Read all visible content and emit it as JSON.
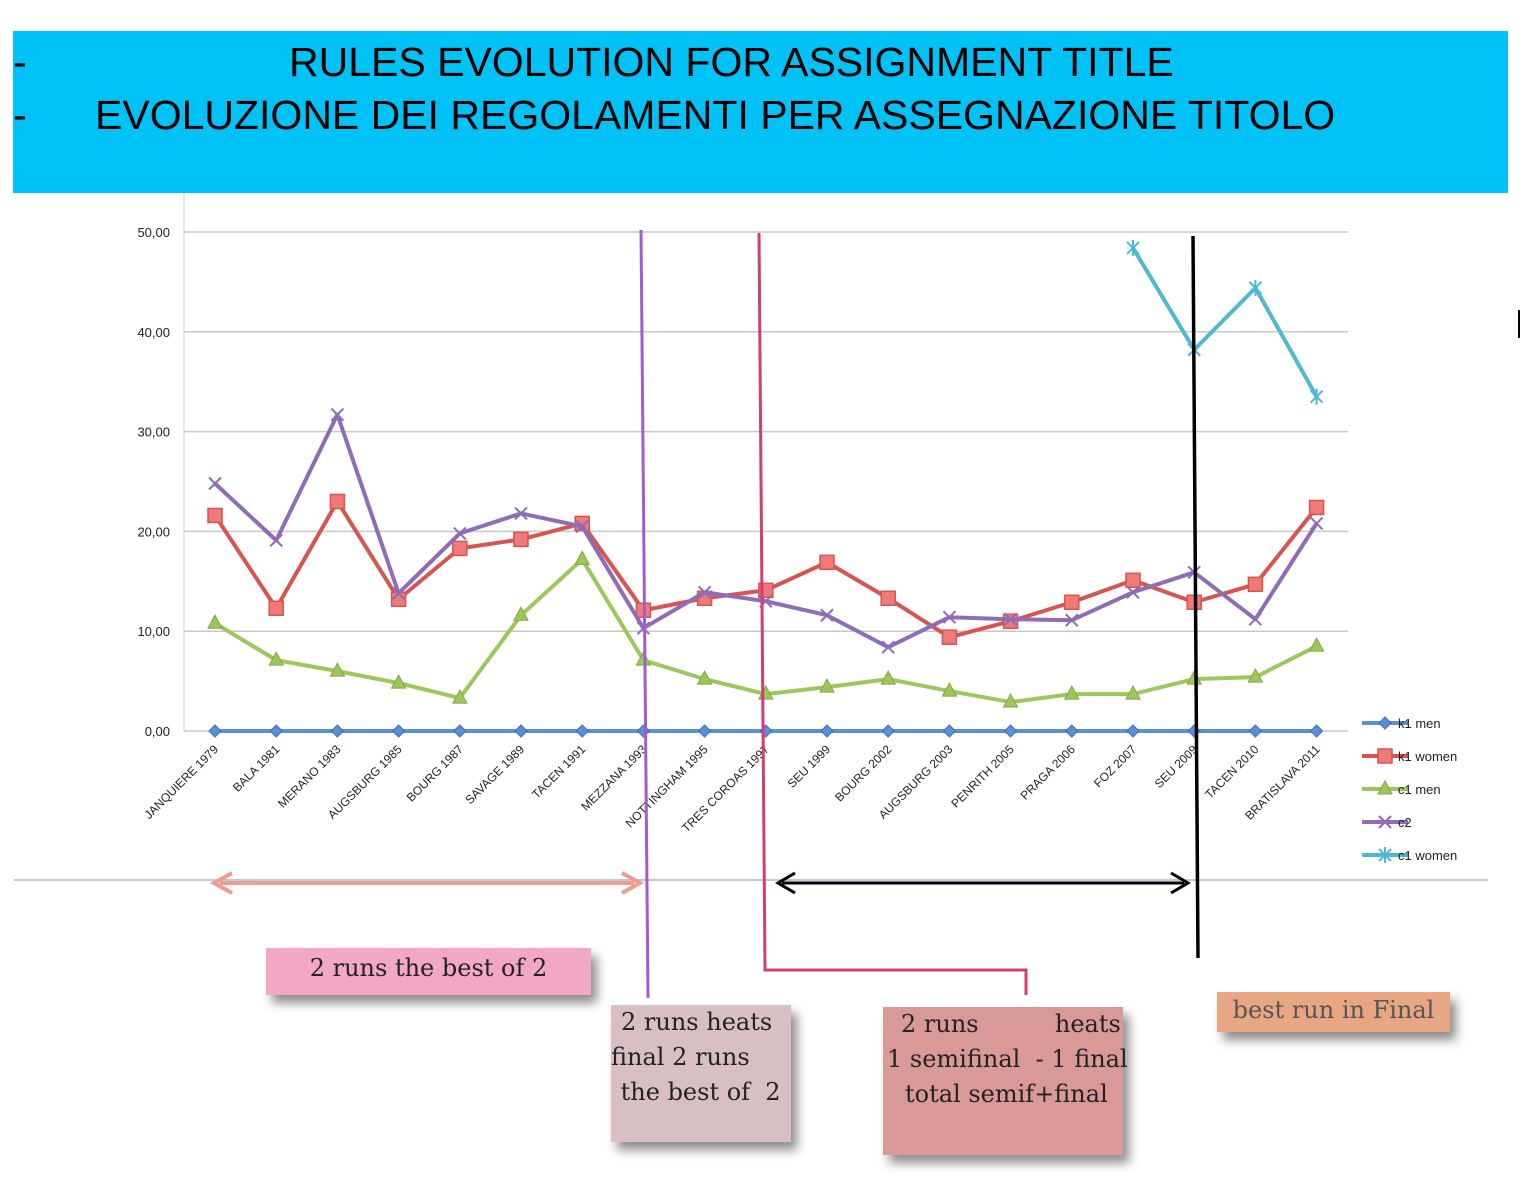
{
  "banner": {
    "line1_dash": "-",
    "line1": "RULES EVOLUTION FOR ASSIGNMENT TITLE",
    "line2_dash": "-",
    "line2": "EVOLUZIONE DEI REGOLAMENTI PER ASSEGNAZIONE TITOLO",
    "color": "#00c2f6"
  },
  "chart_data": {
    "type": "line",
    "categories": [
      "JANQUIERE 1979",
      "BALA 1981",
      "MERANO 1983",
      "AUGSBURG 1985",
      "BOURG 1987",
      "SAVAGE 1989",
      "TACEN 1991",
      "MEZZANA 1993",
      "NOTTINGHAM 1995",
      "TRES COROAS 1997",
      "SEU 1999",
      "BOURG 2002",
      "AUGSBURG 2003",
      "PENRITH 2005",
      "PRAGA 2006",
      "FOZ 2007",
      "SEU 2009",
      "TACEN 2010",
      "BRATISLAVA 2011"
    ],
    "yticks": [
      "0,00",
      "10,00",
      "20,00",
      "30,00",
      "40,00",
      "50,00"
    ],
    "ylim": [
      0,
      50
    ],
    "grid": true,
    "legend_position": "right",
    "series": [
      {
        "name": "k1 men",
        "color": "#5b8fd6",
        "marker": "diamond",
        "values": [
          0,
          0,
          0,
          0,
          0,
          0,
          0,
          0,
          0,
          0,
          0,
          0,
          0,
          0,
          0,
          0,
          0,
          0,
          0
        ]
      },
      {
        "name": "k1 women",
        "color": "#d9534f",
        "marker": "square",
        "values": [
          21.6,
          12.3,
          23.0,
          13.2,
          18.3,
          19.2,
          20.8,
          12.1,
          13.3,
          14.1,
          16.9,
          13.3,
          9.4,
          11.0,
          12.9,
          15.1,
          12.9,
          14.7,
          22.4
        ]
      },
      {
        "name": "c1 men",
        "color": "#9cc85a",
        "marker": "triangle",
        "values": [
          10.8,
          7.1,
          6.0,
          4.8,
          3.3,
          11.6,
          17.2,
          7.1,
          5.2,
          3.7,
          4.4,
          5.2,
          4.0,
          2.9,
          3.7,
          3.7,
          5.2,
          5.4,
          8.5
        ]
      },
      {
        "name": "c2",
        "color": "#8e6cb8",
        "marker": "x",
        "values": [
          24.8,
          19.1,
          31.7,
          13.8,
          19.8,
          21.8,
          20.5,
          10.3,
          13.9,
          13.0,
          11.6,
          8.4,
          11.4,
          11.2,
          11.1,
          13.9,
          15.9,
          11.2,
          20.8
        ]
      },
      {
        "name": "c1 women",
        "color": "#4fb8d2",
        "marker": "star",
        "values": [
          null,
          null,
          null,
          null,
          null,
          null,
          null,
          null,
          null,
          null,
          null,
          null,
          null,
          null,
          null,
          48.4,
          38.2,
          44.4,
          33.5
        ]
      }
    ]
  },
  "annotations": {
    "note1": "2 runs the best of  2",
    "note2_lines": [
      "2 runs heats",
      "final 2 runs",
      " the best of  2"
    ],
    "note3_lines": [
      "2 runs          heats",
      "1 semifinal  - 1 final",
      "total semif+final"
    ],
    "note4": "best run in Final"
  }
}
